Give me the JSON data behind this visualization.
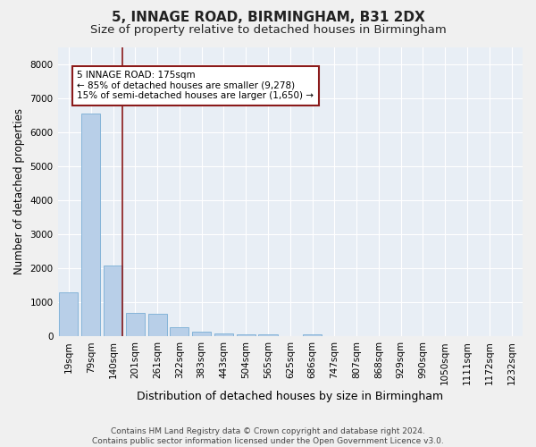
{
  "title": "5, INNAGE ROAD, BIRMINGHAM, B31 2DX",
  "subtitle": "Size of property relative to detached houses in Birmingham",
  "xlabel": "Distribution of detached houses by size in Birmingham",
  "ylabel": "Number of detached properties",
  "footer_line1": "Contains HM Land Registry data © Crown copyright and database right 2024.",
  "footer_line2": "Contains public sector information licensed under the Open Government Licence v3.0.",
  "bar_labels": [
    "19sqm",
    "79sqm",
    "140sqm",
    "201sqm",
    "261sqm",
    "322sqm",
    "383sqm",
    "443sqm",
    "504sqm",
    "565sqm",
    "625sqm",
    "686sqm",
    "747sqm",
    "807sqm",
    "868sqm",
    "929sqm",
    "990sqm",
    "1050sqm",
    "1111sqm",
    "1172sqm",
    "1232sqm"
  ],
  "bar_values": [
    1300,
    6550,
    2075,
    700,
    680,
    270,
    145,
    100,
    60,
    60,
    0,
    60,
    0,
    0,
    0,
    0,
    0,
    0,
    0,
    0,
    0
  ],
  "bar_color": "#b8cfe8",
  "bar_edge_color": "#7aadd4",
  "bg_color": "#e8eef5",
  "grid_color": "#ffffff",
  "vline_color": "#8b1a1a",
  "annotation_text": "5 INNAGE ROAD: 175sqm\n← 85% of detached houses are smaller (9,278)\n15% of semi-detached houses are larger (1,650) →",
  "annotation_box_color": "#8b1a1a",
  "ylim": [
    0,
    8500
  ],
  "yticks": [
    0,
    1000,
    2000,
    3000,
    4000,
    5000,
    6000,
    7000,
    8000
  ],
  "title_fontsize": 11,
  "subtitle_fontsize": 9.5,
  "annotation_fontsize": 7.5,
  "tick_fontsize": 7.5,
  "ylabel_fontsize": 8.5,
  "xlabel_fontsize": 9
}
